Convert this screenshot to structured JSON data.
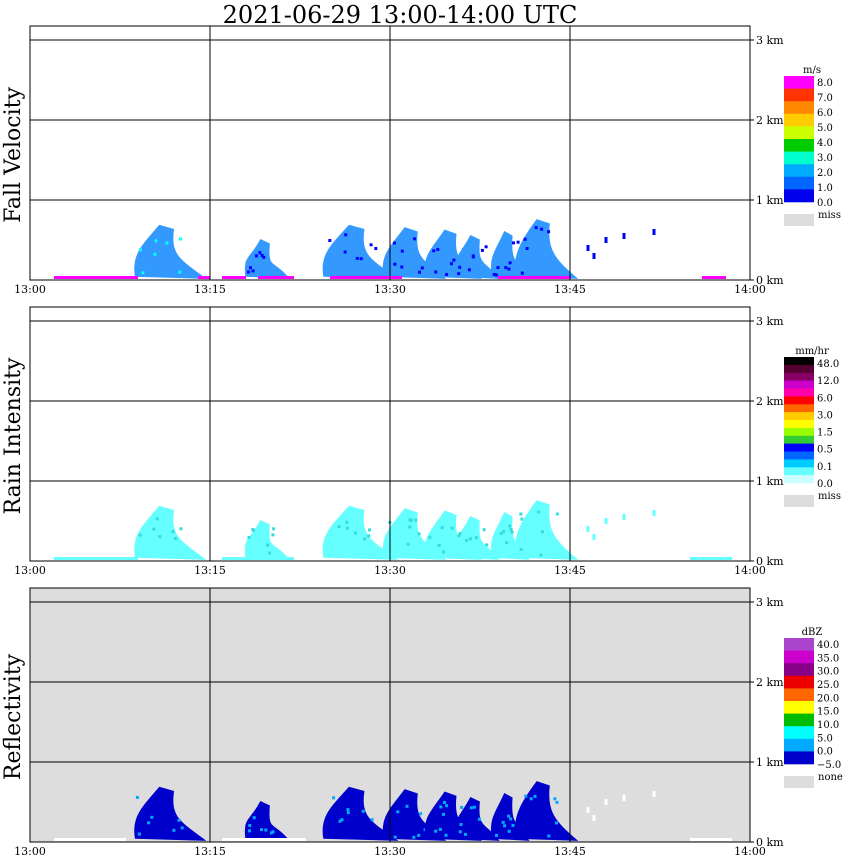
{
  "title": "2021-06-29   13:00-14:00 UTC",
  "chart_data": [
    {
      "type": "heatmap",
      "ylabel": "Fall Velocity",
      "x_ticks": [
        "13:00",
        "13:15",
        "13:30",
        "13:45",
        "14:00"
      ],
      "y_ticks": [
        "0 km",
        "1 km",
        "2 km",
        "3 km"
      ],
      "xlim": [
        "13:00",
        "14:00"
      ],
      "ylim_km": [
        0,
        3
      ],
      "grid": true,
      "background": "#ffffff",
      "legend": {
        "unit": "m/s",
        "labels": [
          "8.0",
          "7.0",
          "6.0",
          "5.0",
          "4.0",
          "3.0",
          "2.0",
          "1.0",
          "0.0"
        ],
        "colors": [
          "#ff00ff",
          "#ff3300",
          "#ff8800",
          "#ffcc00",
          "#ccff00",
          "#00cc00",
          "#00ffcc",
          "#00aaff",
          "#0066ff",
          "#0000ee"
        ],
        "miss_label": "miss",
        "miss_color": "#dddddd"
      },
      "echoes": [
        {
          "start": "13:08.8",
          "end": "13:14.5",
          "top_km": 0.68,
          "color": "#3399ff",
          "accent": "#00ffff"
        },
        {
          "start": "13:18.0",
          "end": "13:21.5",
          "top_km": 0.5,
          "color": "#3399ff",
          "accent": "#0000ff"
        },
        {
          "start": "13:24.5",
          "end": "13:30.5",
          "top_km": 0.68,
          "color": "#3399ff",
          "accent": "#0000ff"
        },
        {
          "start": "13:29.5",
          "end": "13:34.5",
          "top_km": 0.65,
          "color": "#3399ff",
          "accent": "#0000ff"
        },
        {
          "start": "13:33.0",
          "end": "13:37.5",
          "top_km": 0.62,
          "color": "#3399ff",
          "accent": "#0000ff"
        },
        {
          "start": "13:35.5",
          "end": "13:39.0",
          "top_km": 0.55,
          "color": "#3399ff",
          "accent": "#0000ff"
        },
        {
          "start": "13:38.5",
          "end": "13:41.5",
          "top_km": 0.6,
          "color": "#3399ff",
          "accent": "#0000ff"
        },
        {
          "start": "13:40.5",
          "end": "13:45.5",
          "top_km": 0.75,
          "color": "#3399ff",
          "accent": "#0000ff"
        }
      ],
      "surface_strip": {
        "color": "#ff00ff",
        "segments": [
          [
            "13:02",
            "13:09"
          ],
          [
            "13:14",
            "13:15"
          ],
          [
            "13:16",
            "13:18"
          ],
          [
            "13:19",
            "13:22"
          ],
          [
            "13:25",
            "13:31"
          ],
          [
            "13:39",
            "13:45"
          ],
          [
            "13:56",
            "13:58"
          ]
        ]
      },
      "scatter": [
        {
          "time": "13:46.5",
          "height_km": 0.4,
          "color": "#0000ff"
        },
        {
          "time": "13:48",
          "height_km": 0.5,
          "color": "#0000ff"
        },
        {
          "time": "13:49.5",
          "height_km": 0.55,
          "color": "#0000ff"
        },
        {
          "time": "13:52",
          "height_km": 0.6,
          "color": "#0000ff"
        },
        {
          "time": "13:47",
          "height_km": 0.3,
          "color": "#0000ff"
        }
      ]
    },
    {
      "type": "heatmap",
      "ylabel": "Rain Intensity",
      "x_ticks": [
        "13:00",
        "13:15",
        "13:30",
        "13:45",
        "14:00"
      ],
      "y_ticks": [
        "0 km",
        "1 km",
        "2 km",
        "3 km"
      ],
      "xlim": [
        "13:00",
        "14:00"
      ],
      "ylim_km": [
        0,
        3
      ],
      "grid": true,
      "background": "#ffffff",
      "legend": {
        "unit": "mm/hr",
        "labels": [
          "48.0",
          "12.0",
          "6.0",
          "3.0",
          "1.5",
          "0.5",
          "0.1",
          "0.0"
        ],
        "colors": [
          "#000000",
          "#550033",
          "#880066",
          "#cc00cc",
          "#ff00aa",
          "#ff0000",
          "#ff6600",
          "#ffcc00",
          "#ffff00",
          "#99ff00",
          "#33cc33",
          "#0000ff",
          "#0066ff",
          "#00ccff",
          "#66ffff",
          "#ccffff"
        ],
        "miss_label": "miss",
        "miss_color": "#dddddd"
      },
      "echoes": [
        {
          "start": "13:08.8",
          "end": "13:14.5",
          "top_km": 0.68,
          "color": "#66ffff",
          "accent": "#33dddd"
        },
        {
          "start": "13:18.0",
          "end": "13:21.5",
          "top_km": 0.5,
          "color": "#66ffff",
          "accent": "#33dddd"
        },
        {
          "start": "13:24.5",
          "end": "13:30.5",
          "top_km": 0.68,
          "color": "#66ffff",
          "accent": "#33dddd"
        },
        {
          "start": "13:29.5",
          "end": "13:34.5",
          "top_km": 0.65,
          "color": "#66ffff",
          "accent": "#33dddd"
        },
        {
          "start": "13:33.0",
          "end": "13:37.5",
          "top_km": 0.62,
          "color": "#66ffff",
          "accent": "#33dddd"
        },
        {
          "start": "13:35.5",
          "end": "13:39.0",
          "top_km": 0.55,
          "color": "#66ffff",
          "accent": "#33dddd"
        },
        {
          "start": "13:38.5",
          "end": "13:41.5",
          "top_km": 0.6,
          "color": "#66ffff",
          "accent": "#33dddd"
        },
        {
          "start": "13:40.5",
          "end": "13:45.5",
          "top_km": 0.75,
          "color": "#66ffff",
          "accent": "#33dddd"
        }
      ],
      "surface_strip": {
        "color": "#66ffff",
        "segments": [
          [
            "13:02",
            "13:09"
          ],
          [
            "13:16",
            "13:22"
          ],
          [
            "13:55",
            "13:58.5"
          ]
        ]
      },
      "scatter": [
        {
          "time": "13:46.5",
          "height_km": 0.4,
          "color": "#66ffff"
        },
        {
          "time": "13:48",
          "height_km": 0.5,
          "color": "#66ffff"
        },
        {
          "time": "13:49.5",
          "height_km": 0.55,
          "color": "#66ffff"
        },
        {
          "time": "13:52",
          "height_km": 0.6,
          "color": "#66ffff"
        },
        {
          "time": "13:47",
          "height_km": 0.3,
          "color": "#66ffff"
        }
      ]
    },
    {
      "type": "heatmap",
      "ylabel": "Reflectivity",
      "x_ticks": [
        "13:00",
        "13:15",
        "13:30",
        "13:45",
        "14:00"
      ],
      "y_ticks": [
        "0 km",
        "1 km",
        "2 km",
        "3 km"
      ],
      "xlim": [
        "13:00",
        "14:00"
      ],
      "ylim_km": [
        0,
        3
      ],
      "grid": true,
      "background": "#dddddd",
      "legend": {
        "unit": "dBZ",
        "labels": [
          "40.0",
          "35.0",
          "30.0",
          "25.0",
          "20.0",
          "15.0",
          "10.0",
          "5.0",
          "0.0",
          "−5.0"
        ],
        "colors": [
          "#aa44cc",
          "#cc00cc",
          "#880088",
          "#ee0000",
          "#ff6600",
          "#ffff00",
          "#00bb00",
          "#00ffff",
          "#00aaff",
          "#0000cc"
        ],
        "miss_label": "none",
        "miss_color": "#dddddd"
      },
      "echoes": [
        {
          "start": "13:08.8",
          "end": "13:14.5",
          "top_km": 0.68,
          "color": "#0000cc",
          "accent": "#00aaff"
        },
        {
          "start": "13:18.0",
          "end": "13:21.5",
          "top_km": 0.5,
          "color": "#0000cc",
          "accent": "#00aaff"
        },
        {
          "start": "13:24.5",
          "end": "13:30.5",
          "top_km": 0.68,
          "color": "#0000cc",
          "accent": "#00aaff"
        },
        {
          "start": "13:29.5",
          "end": "13:34.5",
          "top_km": 0.65,
          "color": "#0000cc",
          "accent": "#00aaff"
        },
        {
          "start": "13:33.0",
          "end": "13:37.5",
          "top_km": 0.62,
          "color": "#0000cc",
          "accent": "#00aaff"
        },
        {
          "start": "13:35.5",
          "end": "13:39.0",
          "top_km": 0.55,
          "color": "#0000cc",
          "accent": "#00aaff"
        },
        {
          "start": "13:38.5",
          "end": "13:41.5",
          "top_km": 0.6,
          "color": "#0000cc",
          "accent": "#00aaff"
        },
        {
          "start": "13:40.5",
          "end": "13:45.5",
          "top_km": 0.75,
          "color": "#0000cc",
          "accent": "#00aaff"
        }
      ],
      "surface_strip": {
        "color": "#ffffff",
        "segments": [
          [
            "13:02",
            "13:08"
          ],
          [
            "13:16",
            "13:23"
          ],
          [
            "13:55",
            "13:58.5"
          ]
        ]
      },
      "scatter": [
        {
          "time": "13:46.5",
          "height_km": 0.4,
          "color": "#ffffff"
        },
        {
          "time": "13:48",
          "height_km": 0.5,
          "color": "#ffffff"
        },
        {
          "time": "13:49.5",
          "height_km": 0.55,
          "color": "#ffffff"
        },
        {
          "time": "13:52",
          "height_km": 0.6,
          "color": "#ffffff"
        },
        {
          "time": "13:47",
          "height_km": 0.3,
          "color": "#ffffff"
        }
      ]
    }
  ]
}
